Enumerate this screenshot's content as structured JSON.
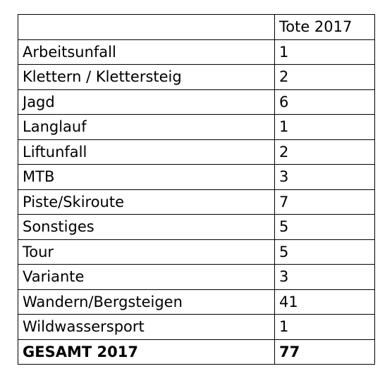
{
  "table": {
    "header": {
      "category": "",
      "value": "Tote 2017"
    },
    "rows": [
      {
        "category": "Arbeitsunfall",
        "value": "1"
      },
      {
        "category": "Klettern / Klettersteig",
        "value": "2"
      },
      {
        "category": "Jagd",
        "value": "6"
      },
      {
        "category": "Langlauf",
        "value": "1"
      },
      {
        "category": "Liftunfall",
        "value": "2"
      },
      {
        "category": "MTB",
        "value": "3"
      },
      {
        "category": "Piste/Skiroute",
        "value": "7"
      },
      {
        "category": "Sonstiges",
        "value": "5"
      },
      {
        "category": "Tour",
        "value": "5"
      },
      {
        "category": "Variante",
        "value": "3"
      },
      {
        "category": "Wandern/Bergsteigen",
        "value": "41"
      },
      {
        "category": "Wildwassersport",
        "value": "1"
      }
    ],
    "total": {
      "category": "GESAMT 2017",
      "value": "77"
    }
  }
}
